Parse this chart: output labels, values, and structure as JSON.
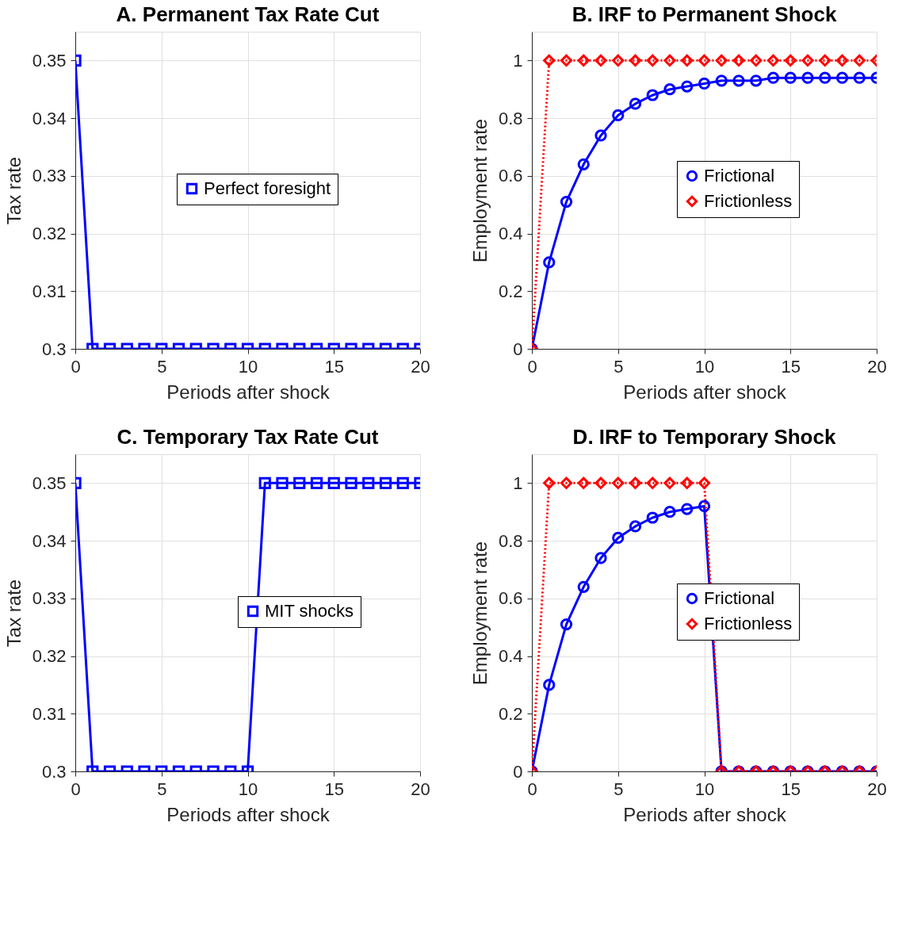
{
  "chart_data": [
    {
      "type": "line",
      "title": "A. Permanent Tax Rate Cut",
      "xlabel": "Periods after shock",
      "ylabel": "Tax rate",
      "x": [
        0,
        1,
        2,
        3,
        4,
        5,
        6,
        7,
        8,
        9,
        10,
        11,
        12,
        13,
        14,
        15,
        16,
        17,
        18,
        19,
        20
      ],
      "xlim": [
        0,
        20
      ],
      "xticks": [
        0,
        5,
        10,
        15,
        20
      ],
      "ylim": [
        0.3,
        0.355
      ],
      "yticks": [
        0.3,
        0.31,
        0.32,
        0.33,
        0.34,
        0.35
      ],
      "grid": true,
      "legend": "right",
      "series": [
        {
          "name": "Perfect foresight",
          "color": "#0000ff",
          "marker": "square",
          "line_style": "solid",
          "values": [
            0.35,
            0.3,
            0.3,
            0.3,
            0.3,
            0.3,
            0.3,
            0.3,
            0.3,
            0.3,
            0.3,
            0.3,
            0.3,
            0.3,
            0.3,
            0.3,
            0.3,
            0.3,
            0.3,
            0.3,
            0.3
          ]
        }
      ]
    },
    {
      "type": "line",
      "title": "B. IRF to Permanent Shock",
      "xlabel": "Periods after shock",
      "ylabel": "Employment rate",
      "x": [
        0,
        1,
        2,
        3,
        4,
        5,
        6,
        7,
        8,
        9,
        10,
        11,
        12,
        13,
        14,
        15,
        16,
        17,
        18,
        19,
        20
      ],
      "xlim": [
        0,
        20
      ],
      "xticks": [
        0,
        5,
        10,
        15,
        20
      ],
      "ylim": [
        0,
        1.1
      ],
      "yticks": [
        0,
        0.2,
        0.4,
        0.6,
        0.8,
        1
      ],
      "grid": true,
      "legend": "right",
      "series": [
        {
          "name": "Frictional",
          "color": "#0000ff",
          "marker": "circle",
          "line_style": "solid",
          "values": [
            0,
            0.3,
            0.51,
            0.64,
            0.74,
            0.81,
            0.85,
            0.88,
            0.9,
            0.91,
            0.92,
            0.93,
            0.93,
            0.93,
            0.94,
            0.94,
            0.94,
            0.94,
            0.94,
            0.94,
            0.94
          ]
        },
        {
          "name": "Frictionless",
          "color": "#ff0000",
          "marker": "diamond",
          "line_style": "dotted",
          "values": [
            0,
            1,
            1,
            1,
            1,
            1,
            1,
            1,
            1,
            1,
            1,
            1,
            1,
            1,
            1,
            1,
            1,
            1,
            1,
            1,
            1
          ]
        }
      ]
    },
    {
      "type": "line",
      "title": "C. Temporary Tax Rate Cut",
      "xlabel": "Periods after shock",
      "ylabel": "Tax rate",
      "x": [
        0,
        1,
        2,
        3,
        4,
        5,
        6,
        7,
        8,
        9,
        10,
        11,
        12,
        13,
        14,
        15,
        16,
        17,
        18,
        19,
        20
      ],
      "xlim": [
        0,
        20
      ],
      "xticks": [
        0,
        5,
        10,
        15,
        20
      ],
      "ylim": [
        0.3,
        0.355
      ],
      "yticks": [
        0.3,
        0.31,
        0.32,
        0.33,
        0.34,
        0.35
      ],
      "grid": true,
      "legend": "right",
      "series": [
        {
          "name": "MIT shocks",
          "color": "#0000ff",
          "marker": "square",
          "line_style": "solid",
          "values": [
            0.35,
            0.3,
            0.3,
            0.3,
            0.3,
            0.3,
            0.3,
            0.3,
            0.3,
            0.3,
            0.3,
            0.35,
            0.35,
            0.35,
            0.35,
            0.35,
            0.35,
            0.35,
            0.35,
            0.35,
            0.35
          ]
        }
      ]
    },
    {
      "type": "line",
      "title": "D. IRF to Temporary Shock",
      "xlabel": "Periods after shock",
      "ylabel": "Employment rate",
      "x": [
        0,
        1,
        2,
        3,
        4,
        5,
        6,
        7,
        8,
        9,
        10,
        11,
        12,
        13,
        14,
        15,
        16,
        17,
        18,
        19,
        20
      ],
      "xlim": [
        0,
        20
      ],
      "xticks": [
        0,
        5,
        10,
        15,
        20
      ],
      "ylim": [
        0,
        1.1
      ],
      "yticks": [
        0,
        0.2,
        0.4,
        0.6,
        0.8,
        1
      ],
      "grid": true,
      "legend": "right",
      "series": [
        {
          "name": "Frictional",
          "color": "#0000ff",
          "marker": "circle",
          "line_style": "solid",
          "values": [
            0,
            0.3,
            0.51,
            0.64,
            0.74,
            0.81,
            0.85,
            0.88,
            0.9,
            0.91,
            0.92,
            0,
            0,
            0,
            0,
            0,
            0,
            0,
            0,
            0,
            0
          ]
        },
        {
          "name": "Frictionless",
          "color": "#ff0000",
          "marker": "diamond",
          "line_style": "dotted",
          "values": [
            0,
            1,
            1,
            1,
            1,
            1,
            1,
            1,
            1,
            1,
            1,
            0,
            0,
            0,
            0,
            0,
            0,
            0,
            0,
            0,
            0
          ]
        }
      ]
    }
  ]
}
